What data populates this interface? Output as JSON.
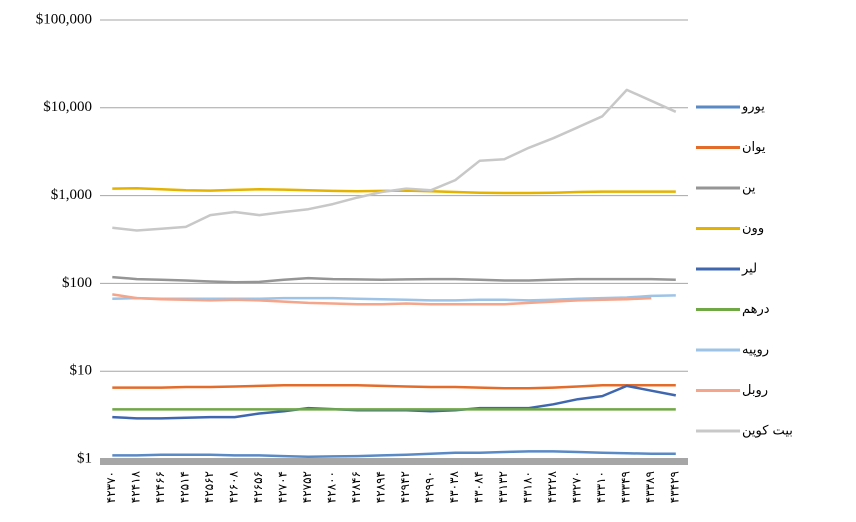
{
  "chart_data": {
    "type": "line",
    "log": true,
    "grid": true,
    "categories": [
      "۴۲۳۷۰",
      "۴۲۴۱۸",
      "۴۲۴۶۶",
      "۴۲۵۱۴",
      "۴۲۵۶۲",
      "۴۲۶۰۸",
      "۴۲۶۵۶",
      "۴۲۷۰۴",
      "۴۲۷۵۲",
      "۴۲۸۰۰",
      "۴۲۸۴۶",
      "۴۲۸۹۴",
      "۴۲۹۴۲",
      "۴۲۹۹۰",
      "۴۳۰۳۸",
      "۴۳۰۸۴",
      "۴۳۱۳۲",
      "۴۳۱۸۰",
      "۴۳۲۲۸",
      "۴۳۲۷۰",
      "۴۳۳۱۰",
      "۴۳۳۴۹",
      "۴۳۳۸۹",
      "۴۳۴۲۹"
    ],
    "ylim": [
      1,
      100000
    ],
    "yticks": [
      {
        "value": 1,
        "label": "$1"
      },
      {
        "value": 10,
        "label": "$10"
      },
      {
        "value": 100,
        "label": "$100"
      },
      {
        "value": 1000,
        "label": "$1,000"
      },
      {
        "value": 10000,
        "label": "$10,000"
      },
      {
        "value": 100000,
        "label": "$100,000"
      }
    ],
    "series": [
      {
        "name": "یورو",
        "color": "#5a8ac6",
        "values": [
          1.1,
          1.1,
          1.12,
          1.12,
          1.12,
          1.1,
          1.1,
          1.08,
          1.06,
          1.07,
          1.08,
          1.1,
          1.12,
          1.15,
          1.18,
          1.18,
          1.2,
          1.22,
          1.22,
          1.2,
          1.18,
          1.16,
          1.15,
          1.15
        ]
      },
      {
        "name": "یوان",
        "color": "#e46c2a",
        "values": [
          6.5,
          6.5,
          6.5,
          6.6,
          6.6,
          6.7,
          6.8,
          6.9,
          6.9,
          6.9,
          6.9,
          6.8,
          6.7,
          6.6,
          6.6,
          6.5,
          6.4,
          6.4,
          6.5,
          6.7,
          6.9,
          6.9,
          6.9,
          6.9
        ]
      },
      {
        "name": "ین",
        "color": "#959595",
        "values": [
          118,
          112,
          110,
          108,
          105,
          103,
          104,
          110,
          115,
          112,
          111,
          110,
          111,
          112,
          112,
          110,
          108,
          108,
          110,
          112,
          112,
          112,
          112,
          110
        ]
      },
      {
        "name": "وون",
        "color": "#e3b300",
        "values": [
          1200,
          1210,
          1180,
          1150,
          1140,
          1160,
          1180,
          1170,
          1150,
          1130,
          1120,
          1130,
          1140,
          1120,
          1100,
          1080,
          1070,
          1070,
          1080,
          1100,
          1110,
          1110,
          1110,
          1110
        ]
      },
      {
        "name": "لیر",
        "color": "#3f67b0",
        "values": [
          3.0,
          2.9,
          2.9,
          2.95,
          3.0,
          3.0,
          3.3,
          3.5,
          3.8,
          3.7,
          3.6,
          3.6,
          3.6,
          3.5,
          3.6,
          3.8,
          3.8,
          3.8,
          4.2,
          4.8,
          5.2,
          6.8,
          6.0,
          5.3
        ]
      },
      {
        "name": "درهم",
        "color": "#70a845",
        "values": [
          3.67,
          3.67,
          3.67,
          3.67,
          3.67,
          3.67,
          3.67,
          3.67,
          3.67,
          3.67,
          3.67,
          3.67,
          3.67,
          3.67,
          3.67,
          3.67,
          3.67,
          3.67,
          3.67,
          3.67,
          3.67,
          3.67,
          3.67,
          3.67
        ]
      },
      {
        "name": "روپیه",
        "color": "#9dc3e6",
        "values": [
          67,
          68,
          67,
          67,
          67,
          67,
          67,
          68,
          68,
          68,
          67,
          66,
          65,
          64,
          64,
          65,
          65,
          64,
          65,
          67,
          68,
          69,
          72,
          73
        ]
      },
      {
        "name": "روبل",
        "color": "#f4a58a",
        "values": [
          75,
          68,
          66,
          65,
          64,
          65,
          64,
          62,
          60,
          59,
          58,
          58,
          59,
          58,
          58,
          58,
          58,
          60,
          62,
          64,
          65,
          66,
          68,
          null
        ]
      },
      {
        "name": "بیت کوین",
        "color": "#c8c8c8",
        "values": [
          430,
          400,
          420,
          440,
          600,
          650,
          600,
          650,
          700,
          800,
          950,
          1100,
          1200,
          1150,
          1500,
          2500,
          2600,
          3500,
          4500,
          6000,
          8000,
          16000,
          12000,
          9000
        ]
      }
    ]
  }
}
